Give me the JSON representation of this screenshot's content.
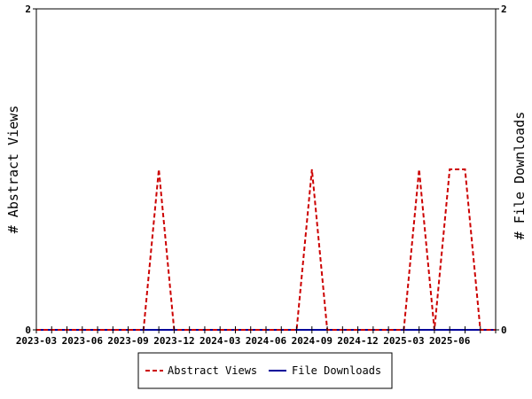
{
  "chart_data": {
    "type": "line",
    "title": "",
    "ylabel_left": "# Abstract Views",
    "ylabel_right": "# File Downloads",
    "ylim": [
      0,
      2
    ],
    "y_ticks_left": [
      "0",
      "2"
    ],
    "y_ticks_right": [
      "0",
      "2"
    ],
    "x_tick_labels": [
      "2023-03",
      "2023-06",
      "2023-09",
      "2023-12",
      "2024-03",
      "2024-06",
      "2024-09",
      "2024-12",
      "2025-03",
      "2025-06"
    ],
    "x": [
      "2023-03",
      "2023-04",
      "2023-05",
      "2023-06",
      "2023-07",
      "2023-08",
      "2023-09",
      "2023-10",
      "2023-11",
      "2023-12",
      "2024-01",
      "2024-02",
      "2024-03",
      "2024-04",
      "2024-05",
      "2024-06",
      "2024-07",
      "2024-08",
      "2024-09",
      "2024-10",
      "2024-11",
      "2024-12",
      "2025-01",
      "2025-02",
      "2025-03",
      "2025-04",
      "2025-05",
      "2025-06",
      "2025-07",
      "2025-08",
      "2025-09"
    ],
    "series": [
      {
        "name": "Abstract Views",
        "color": "#cc0000",
        "dash": "dashed",
        "values": [
          0,
          0,
          0,
          0,
          0,
          0,
          0,
          0,
          1,
          0,
          0,
          0,
          0,
          0,
          0,
          0,
          0,
          0,
          1,
          0,
          0,
          0,
          0,
          0,
          0,
          1,
          0,
          1,
          1,
          0,
          0
        ]
      },
      {
        "name": "File Downloads",
        "color": "#000099",
        "dash": "solid",
        "values": [
          0,
          0,
          0,
          0,
          0,
          0,
          0,
          0,
          0,
          0,
          0,
          0,
          0,
          0,
          0,
          0,
          0,
          0,
          0,
          0,
          0,
          0,
          0,
          0,
          0,
          0,
          0,
          0,
          0,
          0,
          0
        ]
      }
    ],
    "grid": false,
    "legend_position": "bottom"
  }
}
